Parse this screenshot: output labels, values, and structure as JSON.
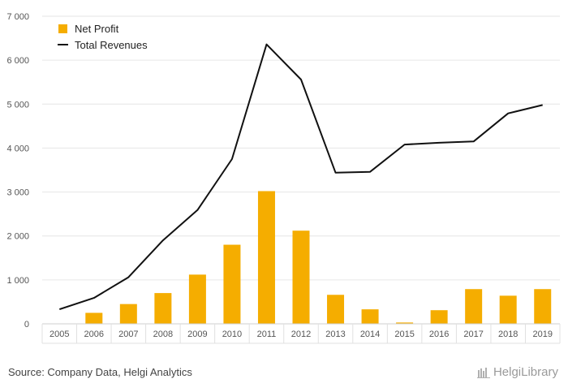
{
  "chart_data": {
    "type": "bar",
    "categories": [
      "2005",
      "2006",
      "2007",
      "2008",
      "2009",
      "2010",
      "2011",
      "2012",
      "2013",
      "2014",
      "2015",
      "2016",
      "2017",
      "2018",
      "2019"
    ],
    "series": [
      {
        "name": "Net Profit",
        "type": "bar",
        "color": "#f5ad00",
        "values": [
          0,
          250,
          450,
          700,
          1120,
          1800,
          3020,
          2120,
          660,
          330,
          30,
          310,
          790,
          640,
          790
        ]
      },
      {
        "name": "Total Revenues",
        "type": "line",
        "color": "#111111",
        "values": [
          330,
          590,
          1060,
          1900,
          2590,
          3750,
          6360,
          5560,
          3440,
          3460,
          4080,
          4120,
          4150,
          4790,
          4980
        ]
      }
    ],
    "y_ticks": [
      "0",
      "1 000",
      "2 000",
      "3 000",
      "4 000",
      "5 000",
      "6 000",
      "7 000"
    ],
    "ylim": [
      0,
      7000
    ],
    "grid": true,
    "legend": {
      "position": "top-left",
      "entries": [
        "Net Profit",
        "Total Revenues"
      ]
    }
  },
  "footer": {
    "source": "Source: Company Data, Helgi Analytics",
    "brand": "HelgiLibrary"
  }
}
